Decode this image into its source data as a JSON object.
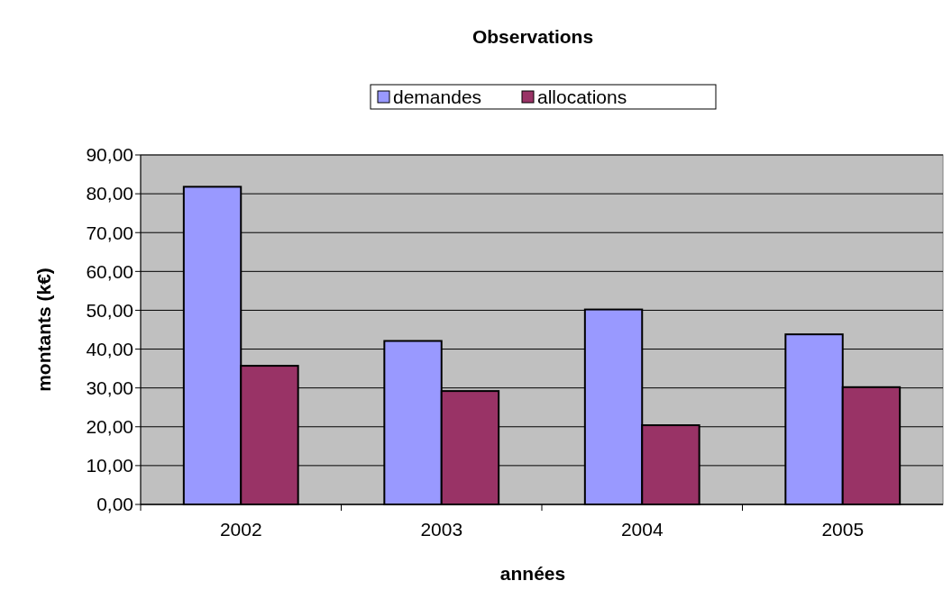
{
  "chart_data": {
    "type": "bar",
    "title": "Observations",
    "xlabel": "années",
    "ylabel": "montants (k€)",
    "categories": [
      "2002",
      "2003",
      "2004",
      "2005"
    ],
    "series": [
      {
        "name": "demandes",
        "color": "#9999ff",
        "values": [
          81.8,
          42.1,
          50.2,
          43.8
        ]
      },
      {
        "name": "allocations",
        "color": "#993366",
        "values": [
          35.7,
          29.2,
          20.4,
          30.2
        ]
      }
    ],
    "ylim": [
      0,
      90
    ],
    "yticks": [
      {
        "value": 0,
        "label": "0,00"
      },
      {
        "value": 10,
        "label": "10,00"
      },
      {
        "value": 20,
        "label": "20,00"
      },
      {
        "value": 30,
        "label": "30,00"
      },
      {
        "value": 40,
        "label": "40,00"
      },
      {
        "value": 50,
        "label": "50,00"
      },
      {
        "value": 60,
        "label": "60,00"
      },
      {
        "value": 70,
        "label": "70,00"
      },
      {
        "value": 80,
        "label": "80,00"
      },
      {
        "value": 90,
        "label": "90,00"
      }
    ],
    "grid": "y",
    "legend": "top"
  }
}
